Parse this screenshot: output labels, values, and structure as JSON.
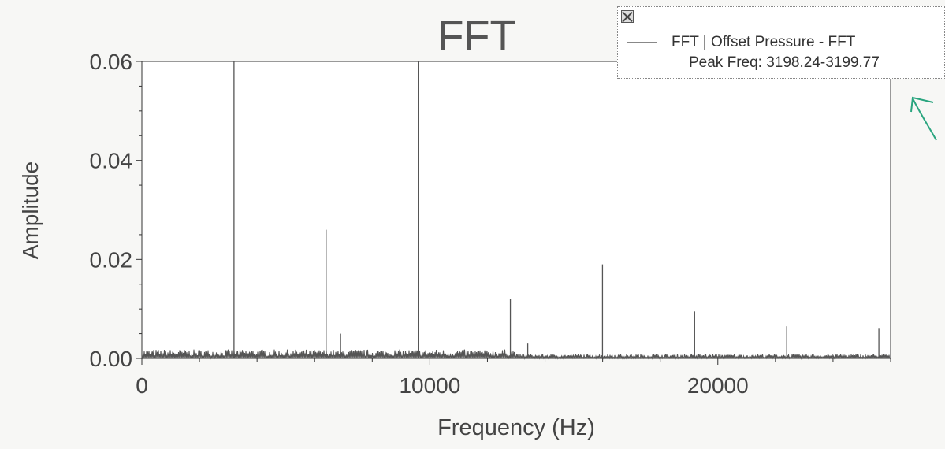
{
  "chart_data": {
    "type": "line",
    "title": "FFT",
    "xlabel": "Frequency (Hz)",
    "ylabel": "Amplitude",
    "xlim": [
      0,
      26000
    ],
    "ylim": [
      0,
      0.06
    ],
    "x_ticks": [
      0,
      10000,
      20000
    ],
    "y_ticks": [
      0.0,
      0.02,
      0.04,
      0.06
    ],
    "x_tick_labels": [
      "0",
      "10000",
      "20000"
    ],
    "y_tick_labels": [
      "0.00",
      "0.02",
      "0.04",
      "0.06"
    ],
    "grid": false,
    "legend_position": "top-right",
    "noise_floor": 0.001,
    "series": [
      {
        "name": "FFT | Offset Pressure - FFT",
        "peaks": [
          {
            "x": 3199,
            "y": 0.06
          },
          {
            "x": 6398,
            "y": 0.026
          },
          {
            "x": 6900,
            "y": 0.005
          },
          {
            "x": 9597,
            "y": 0.06
          },
          {
            "x": 12796,
            "y": 0.012
          },
          {
            "x": 13400,
            "y": 0.003
          },
          {
            "x": 15995,
            "y": 0.019
          },
          {
            "x": 19194,
            "y": 0.0095
          },
          {
            "x": 22393,
            "y": 0.0065
          },
          {
            "x": 25592,
            "y": 0.006
          }
        ]
      }
    ],
    "legend_entries": [
      "FFT | Offset Pressure - FFT",
      "Peak Freq: 3198.24-3199.77"
    ]
  },
  "colors": {
    "trace": "#555555",
    "axis": "#333333",
    "annotation": "#2aa57f"
  },
  "legend": {
    "close_icon": "close-box-icon",
    "series_label": "FFT | Offset Pressure - FFT",
    "peak_label": "Peak Freq: 3198.24-3199.77"
  }
}
